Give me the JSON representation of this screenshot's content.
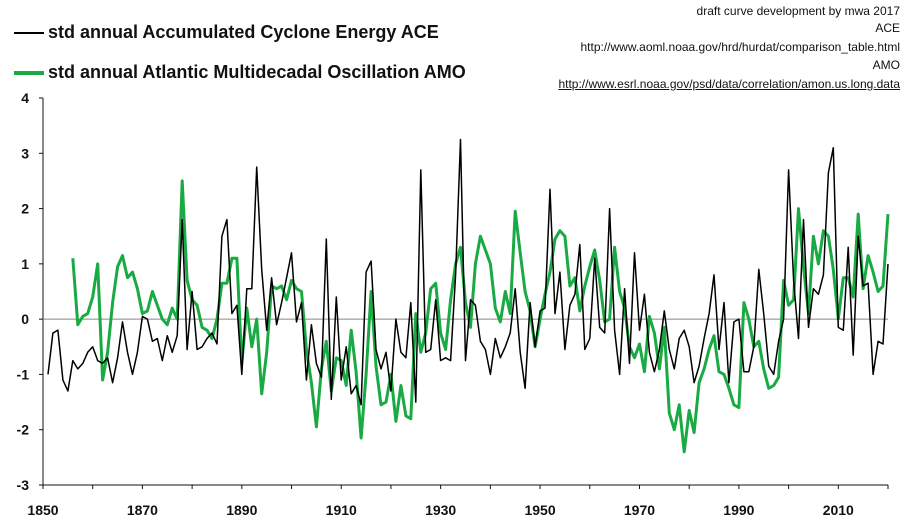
{
  "chart_data": {
    "type": "line",
    "title": "",
    "xlabel": "",
    "ylabel": "",
    "xlim": [
      1850,
      2020
    ],
    "ylim": [
      -3,
      4
    ],
    "x_ticks": [
      1850,
      1870,
      1890,
      1910,
      1930,
      1950,
      1970,
      1990,
      2010
    ],
    "y_ticks": [
      -3,
      -2,
      -1,
      0,
      1,
      2,
      3,
      4
    ],
    "grid": false,
    "legend": [
      {
        "label": "std annual Accumulated Cyclone Energy ACE",
        "color": "#000000"
      },
      {
        "label": "std annual Atlantic Multidecadal Oscillation AMO",
        "color": "#1aaa44"
      }
    ],
    "series": [
      {
        "name": "std annual Accumulated Cyclone Energy ACE",
        "color": "#000000",
        "x_start": 1851,
        "values": [
          -1.0,
          -0.25,
          -0.2,
          -1.1,
          -1.3,
          -0.75,
          -0.9,
          -0.8,
          -0.6,
          -0.5,
          -0.75,
          -0.8,
          -0.7,
          -1.15,
          -0.7,
          -0.05,
          -0.6,
          -1.0,
          -0.6,
          0.05,
          0.0,
          -0.4,
          -0.35,
          -0.75,
          -0.3,
          -0.6,
          -0.3,
          1.8,
          -0.55,
          0.5,
          -0.55,
          -0.5,
          -0.35,
          -0.25,
          -0.45,
          1.5,
          1.8,
          0.1,
          0.25,
          -1.0,
          0.55,
          0.55,
          2.75,
          0.9,
          -0.2,
          0.75,
          -0.1,
          0.3,
          0.75,
          1.2,
          -0.05,
          0.3,
          -1.1,
          -0.1,
          -0.8,
          -1.05,
          1.45,
          -1.45,
          0.4,
          -1.1,
          -0.5,
          -1.35,
          -1.2,
          -1.55,
          0.85,
          1.05,
          -0.55,
          -0.9,
          -0.6,
          -1.3,
          0.0,
          -0.6,
          -0.7,
          0.3,
          -1.5,
          2.7,
          -0.6,
          -0.55,
          0.35,
          -0.75,
          -0.7,
          -0.75,
          0.8,
          3.25,
          -0.75,
          0.35,
          0.25,
          -0.4,
          -0.55,
          -1.0,
          -0.35,
          -0.7,
          -0.5,
          -0.25,
          0.55,
          -0.6,
          -1.25,
          0.3,
          -0.5,
          0.15,
          0.2,
          2.35,
          0.1,
          0.85,
          -0.55,
          0.25,
          0.45,
          1.35,
          -0.55,
          -0.35,
          1.1,
          -0.15,
          -0.25,
          2.0,
          -0.2,
          -1.0,
          0.55,
          -0.8,
          1.2,
          -0.2,
          0.45,
          -0.6,
          -0.95,
          -0.55,
          0.15,
          -0.55,
          -0.9,
          -0.35,
          -0.2,
          -0.5,
          -1.15,
          -0.85,
          -0.35,
          0.1,
          0.8,
          -0.55,
          0.3,
          -1.15,
          -0.05,
          0.0,
          -0.95,
          -0.95,
          -0.5,
          0.9,
          0.1,
          -0.85,
          -1.0,
          -0.4,
          0.0,
          2.7,
          0.7,
          -0.35,
          1.8,
          -0.15,
          0.55,
          0.45,
          0.8,
          2.65,
          3.1,
          -0.15,
          -0.2,
          1.3,
          -0.65,
          1.5,
          0.6,
          0.65,
          -1.0,
          -0.4,
          -0.45,
          1.0
        ]
      },
      {
        "name": "std annual Atlantic Multidecadal Oscillation AMO",
        "color": "#1aaa44",
        "x_start": 1856,
        "values": [
          1.1,
          -0.1,
          0.05,
          0.1,
          0.4,
          1.0,
          -1.1,
          -0.6,
          0.3,
          0.95,
          1.15,
          0.75,
          0.85,
          0.55,
          0.1,
          0.15,
          0.5,
          0.25,
          0.0,
          -0.1,
          0.2,
          0.0,
          2.5,
          0.7,
          0.35,
          0.25,
          -0.15,
          -0.2,
          -0.35,
          0.0,
          0.65,
          0.65,
          1.1,
          1.1,
          -0.8,
          0.2,
          -0.5,
          0.0,
          -1.35,
          -0.6,
          0.6,
          0.55,
          0.6,
          0.35,
          0.7,
          0.55,
          0.5,
          -0.55,
          -1.15,
          -1.95,
          -0.9,
          -0.4,
          -1.3,
          -0.7,
          -0.75,
          -1.2,
          -0.2,
          -0.95,
          -2.15,
          -1.0,
          0.5,
          -0.85,
          -1.55,
          -1.5,
          -1.0,
          -1.85,
          -1.2,
          -1.75,
          -1.8,
          0.1,
          -0.6,
          -0.25,
          0.55,
          0.65,
          -0.25,
          -0.55,
          0.35,
          1.0,
          1.3,
          0.3,
          -0.15,
          1.0,
          1.5,
          1.25,
          1.0,
          0.2,
          -0.05,
          0.5,
          0.1,
          1.95,
          1.2,
          0.5,
          0.15,
          -0.5,
          0.0,
          0.45,
          0.85,
          1.45,
          1.6,
          1.5,
          0.6,
          0.75,
          0.15,
          0.6,
          0.95,
          1.25,
          0.7,
          -0.05,
          0.0,
          1.3,
          0.5,
          0.2,
          -0.5,
          -0.7,
          -0.45,
          -0.95,
          0.05,
          -0.25,
          -0.9,
          -0.15,
          -1.7,
          -2.0,
          -1.55,
          -2.4,
          -1.65,
          -2.05,
          -1.15,
          -0.9,
          -0.55,
          -0.3,
          -0.95,
          -1.0,
          -1.25,
          -1.55,
          -1.6,
          0.3,
          0.0,
          -0.5,
          -0.4,
          -0.9,
          -1.25,
          -1.2,
          -1.05,
          0.7,
          0.25,
          0.35,
          2.0,
          0.95,
          0.1,
          1.5,
          1.0,
          1.6,
          1.5,
          0.9,
          0.0,
          0.75,
          0.75,
          0.4,
          1.9,
          0.55,
          1.15,
          0.85,
          0.5,
          0.6,
          1.9
        ]
      }
    ]
  },
  "credits": [
    "draft curve development by mwa 2017",
    "ACE",
    "http://www.aoml.noaa.gov/hrd/hurdat/comparison_table.html",
    "AMO",
    "http://www.esrl.noaa.gov/psd/data/correlation/amon.us.long.data"
  ]
}
